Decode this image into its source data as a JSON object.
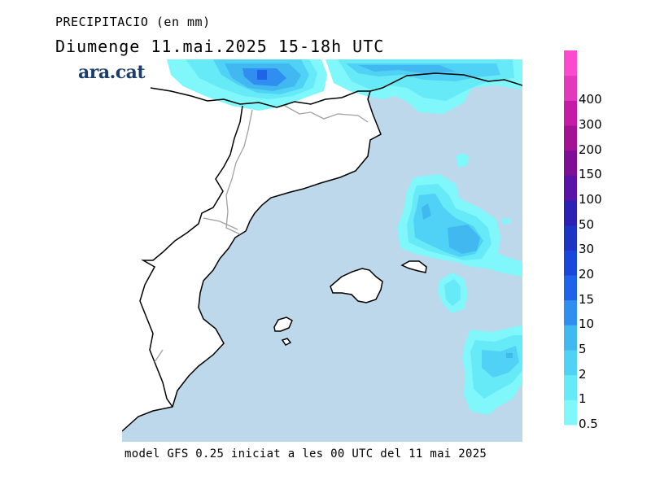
{
  "header": {
    "variable": "PRECIPITACIO (en mm)",
    "date": "Diumenge  11.mai.2025  15-18h  UTC"
  },
  "brand": {
    "logo_text": "ara.cat"
  },
  "footer": {
    "model_note": "model GFS 0.25 iniciat a les 00 UTC del 11 mai 2025"
  },
  "legend": {
    "levels": [
      {
        "label": "0.5",
        "color": "#7ff7fb"
      },
      {
        "label": "1",
        "color": "#66eaf7"
      },
      {
        "label": "2",
        "color": "#4fd2f5"
      },
      {
        "label": "5",
        "color": "#42b8f1"
      },
      {
        "label": "10",
        "color": "#2f8ef0"
      },
      {
        "label": "15",
        "color": "#1f63ea"
      },
      {
        "label": "20",
        "color": "#1847d9"
      },
      {
        "label": "30",
        "color": "#1d33c4"
      },
      {
        "label": "50",
        "color": "#2c1fb3"
      },
      {
        "label": "100",
        "color": "#5a13a6"
      },
      {
        "label": "150",
        "color": "#7e0e95"
      },
      {
        "label": "200",
        "color": "#a31295"
      },
      {
        "label": "300",
        "color": "#c41ca6"
      },
      {
        "label": "400",
        "color": "#e33abd"
      },
      {
        "label": "",
        "color": "#fb4ad0"
      }
    ]
  },
  "colors": {
    "sea": "#bcd8ea",
    "land": "#ffffff",
    "coast": "#000000",
    "border": "#a0a0a0"
  }
}
